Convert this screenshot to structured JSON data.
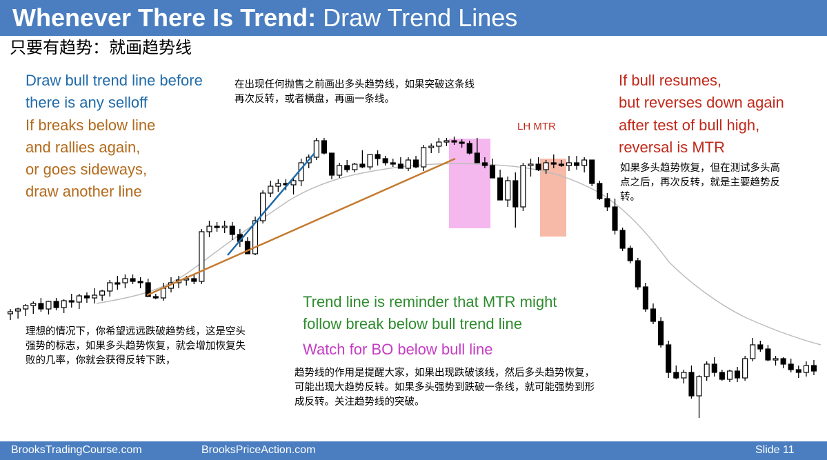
{
  "header": {
    "title_bold": "Whenever There Is Trend:",
    "title_light": "Draw Trend Lines"
  },
  "subtitle_zh": "只要有趋势：就画趋势线",
  "notes": {
    "draw_before_1": "Draw bull trend line before",
    "draw_before_2": "there is any selloff",
    "breaks_1": "If breaks below line",
    "breaks_2": "and rallies again,",
    "breaks_3": "or goes sideways,",
    "breaks_4": "draw another line",
    "top_zh_1": "在出现任何抛售之前画出多头趋势线，如果突破这条线",
    "top_zh_2": "再次反转，或者横盘，再画一条线。",
    "resume_1": "If bull resumes,",
    "resume_2": "but reverses down again",
    "resume_3": "after test of bull high,",
    "resume_4": "reversal is MTR",
    "resume_zh_1": "如果多头趋势恢复，但在测试多头高",
    "resume_zh_2": "点之后，再次反转，就是主要趋势反",
    "resume_zh_3": "转。",
    "lh_mtr": "LH MTR",
    "ideal_zh_1": "理想的情况下，你希望远远跌破趋势线，这是空头",
    "ideal_zh_2": "强势的标志，如果多头趋势恢复，就会增加恢复失",
    "ideal_zh_3": "败的几率，你就会获得反转下跌，",
    "reminder_1": "Trend line is reminder that MTR might",
    "reminder_2": "follow break below bull trend line",
    "watch": "Watch for BO below bull line",
    "reminder_zh_1": "趋势线的作用是提醒大家，如果出现跌破该线，然后多头趋势恢复，",
    "reminder_zh_2": "可能出现大趋势反转。如果多头强势到跌破一条线，就可能强势到形",
    "reminder_zh_3": "成反转。关注趋势线的突破。"
  },
  "footer": {
    "left": "BrooksTradingCourse.com",
    "mid": "BrooksPriceAction.com",
    "slide": "Slide  11"
  },
  "colors": {
    "header_bg": "#4a7ec0",
    "trendline_steep": "#1f6aa8",
    "trendline_shallow": "#c47a30",
    "ma": "#bdbdbd",
    "pink_zone": "#f4b7ee",
    "salmon_zone": "#f7b9a8"
  },
  "chart_data": {
    "type": "candlestick",
    "title": "",
    "xlabel": "",
    "ylabel": "",
    "note": "Price values are relative (no axis printed); bar index 0..94.",
    "bars": [
      [
        455,
        448,
        464,
        452
      ],
      [
        451,
        446,
        462,
        448
      ],
      [
        448,
        441,
        458,
        443
      ],
      [
        443,
        437,
        455,
        440
      ],
      [
        440,
        432,
        452,
        448
      ],
      [
        448,
        436,
        456,
        437
      ],
      [
        437,
        432,
        450,
        446
      ],
      [
        446,
        434,
        454,
        436
      ],
      [
        436,
        426,
        446,
        438
      ],
      [
        438,
        426,
        448,
        429
      ],
      [
        429,
        424,
        439,
        432
      ],
      [
        432,
        418,
        440,
        428
      ],
      [
        428,
        420,
        436,
        422
      ],
      [
        422,
        406,
        430,
        410
      ],
      [
        410,
        400,
        420,
        410
      ],
      [
        410,
        398,
        418,
        404
      ],
      [
        404,
        398,
        412,
        408
      ],
      [
        408,
        402,
        418,
        410
      ],
      [
        410,
        404,
        426,
        430
      ],
      [
        430,
        426,
        434,
        432
      ],
      [
        432,
        410,
        436,
        418
      ],
      [
        418,
        402,
        424,
        410
      ],
      [
        410,
        400,
        418,
        406
      ],
      [
        406,
        400,
        414,
        404
      ],
      [
        404,
        398,
        412,
        408
      ],
      [
        408,
        332,
        412,
        336
      ],
      [
        336,
        320,
        344,
        328
      ],
      [
        328,
        322,
        336,
        330
      ],
      [
        330,
        320,
        338,
        328
      ],
      [
        328,
        322,
        348,
        340
      ],
      [
        340,
        332,
        358,
        350
      ],
      [
        350,
        344,
        366,
        368
      ],
      [
        368,
        314,
        370,
        320
      ],
      [
        320,
        276,
        324,
        280
      ],
      [
        280,
        262,
        286,
        270
      ],
      [
        270,
        260,
        278,
        266
      ],
      [
        266,
        260,
        276,
        268
      ],
      [
        268,
        258,
        282,
        262
      ],
      [
        262,
        230,
        270,
        236
      ],
      [
        236,
        224,
        244,
        228
      ],
      [
        228,
        200,
        232,
        204
      ],
      [
        204,
        200,
        224,
        222
      ],
      [
        222,
        248,
        260,
        254
      ],
      [
        254,
        236,
        258,
        240
      ],
      [
        240,
        232,
        250,
        246
      ],
      [
        246,
        236,
        250,
        238
      ],
      [
        238,
        218,
        244,
        242
      ],
      [
        242,
        224,
        246,
        224
      ],
      [
        224,
        218,
        240,
        230
      ],
      [
        230,
        226,
        240,
        236
      ],
      [
        236,
        230,
        242,
        238
      ],
      [
        238,
        228,
        244,
        244
      ],
      [
        244,
        228,
        248,
        232
      ],
      [
        232,
        226,
        244,
        242
      ],
      [
        242,
        210,
        248,
        214
      ],
      [
        214,
        208,
        222,
        212
      ],
      [
        212,
        200,
        222,
        206
      ],
      [
        206,
        200,
        212,
        204
      ],
      [
        204,
        198,
        210,
        206
      ],
      [
        206,
        202,
        214,
        208
      ],
      [
        208,
        204,
        224,
        222
      ],
      [
        222,
        200,
        230,
        236
      ],
      [
        236,
        228,
        244,
        240
      ],
      [
        240,
        230,
        256,
        258
      ],
      [
        258,
        246,
        270,
        290
      ],
      [
        290,
        256,
        300,
        262
      ],
      [
        262,
        250,
        330,
        300
      ],
      [
        300,
        236,
        306,
        240
      ],
      [
        240,
        230,
        256,
        238
      ],
      [
        238,
        228,
        248,
        246
      ],
      [
        246,
        232,
        252,
        236
      ],
      [
        236,
        224,
        244,
        238
      ],
      [
        238,
        232,
        242,
        240
      ],
      [
        240,
        226,
        248,
        236
      ],
      [
        236,
        226,
        246,
        240
      ],
      [
        240,
        228,
        250,
        232
      ],
      [
        232,
        232,
        270,
        266
      ],
      [
        266,
        262,
        290,
        288
      ],
      [
        288,
        280,
        306,
        300
      ],
      [
        300,
        288,
        340,
        334
      ]
    ]
  }
}
